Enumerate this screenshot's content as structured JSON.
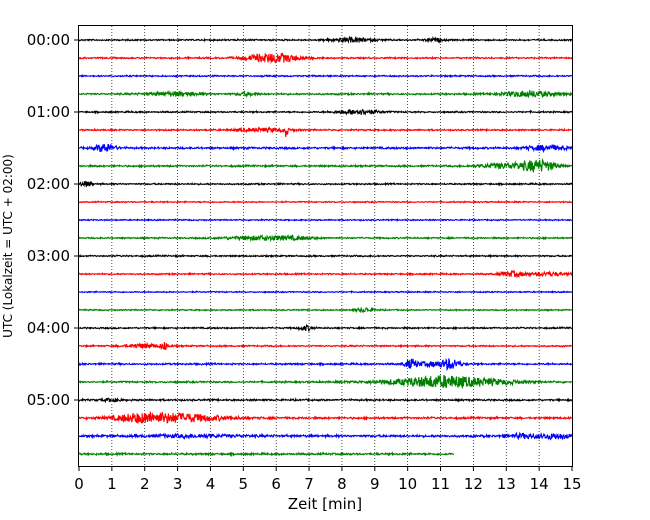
{
  "chart_data": {
    "type": "line",
    "title": "",
    "xlabel": "Zeit  [min]",
    "ylabel": "UTC (Lokalzeit = UTC + 02:00)",
    "xlim": [
      0,
      15
    ],
    "x_ticks": [
      0,
      1,
      2,
      3,
      4,
      5,
      6,
      7,
      8,
      9,
      10,
      11,
      12,
      13,
      14,
      15
    ],
    "grid": "vertical dotted lines at each minute",
    "y_tick_labels": [
      "00:00",
      "01:00",
      "02:00",
      "03:00",
      "04:00",
      "05:00"
    ],
    "trace_minutes": 15,
    "color_cycle": [
      "#000000",
      "#ff0000",
      "#0000ff",
      "#008000"
    ],
    "traces": [
      {
        "start": "00:00",
        "color": "#000000",
        "noise": 0.6,
        "events": [
          {
            "t": 8.3,
            "amp": 2.0,
            "dur": 0.7
          },
          {
            "t": 10.8,
            "amp": 1.5,
            "dur": 0.3
          }
        ]
      },
      {
        "start": "00:15",
        "color": "#ff0000",
        "noise": 0.6,
        "events": [
          {
            "t": 5.9,
            "amp": 4.5,
            "dur": 0.8
          }
        ]
      },
      {
        "start": "00:30",
        "color": "#0000ff",
        "noise": 0.6,
        "events": []
      },
      {
        "start": "00:45",
        "color": "#008000",
        "noise": 0.7,
        "events": [
          {
            "t": 2.9,
            "amp": 2.0,
            "dur": 0.8
          },
          {
            "t": 5.1,
            "amp": 1.5,
            "dur": 0.3
          },
          {
            "t": 13.7,
            "amp": 3.0,
            "dur": 0.8
          }
        ]
      },
      {
        "start": "01:00",
        "color": "#000000",
        "noise": 0.6,
        "events": [
          {
            "t": 8.5,
            "amp": 2.5,
            "dur": 0.6
          }
        ]
      },
      {
        "start": "01:15",
        "color": "#ff0000",
        "noise": 0.6,
        "events": [
          {
            "t": 5.6,
            "amp": 1.5,
            "dur": 0.9
          },
          {
            "t": 6.3,
            "amp": 7.0,
            "dur": 0.05
          }
        ]
      },
      {
        "start": "01:30",
        "color": "#0000ff",
        "noise": 0.8,
        "events": [
          {
            "t": 0.8,
            "amp": 4.0,
            "dur": 0.3
          },
          {
            "t": 14.2,
            "amp": 2.5,
            "dur": 0.6
          }
        ]
      },
      {
        "start": "01:45",
        "color": "#008000",
        "noise": 0.7,
        "events": [
          {
            "t": 13.0,
            "amp": 2.5,
            "dur": 0.8
          },
          {
            "t": 14.0,
            "amp": 5.5,
            "dur": 0.5
          }
        ]
      },
      {
        "start": "02:00",
        "color": "#000000",
        "noise": 0.6,
        "events": [
          {
            "t": 0.2,
            "amp": 2.5,
            "dur": 0.2
          }
        ]
      },
      {
        "start": "02:15",
        "color": "#ff0000",
        "noise": 0.5,
        "events": []
      },
      {
        "start": "02:30",
        "color": "#0000ff",
        "noise": 0.5,
        "events": []
      },
      {
        "start": "02:45",
        "color": "#008000",
        "noise": 0.6,
        "events": [
          {
            "t": 5.5,
            "amp": 2.0,
            "dur": 1.0
          },
          {
            "t": 6.6,
            "amp": 1.2,
            "dur": 0.6
          }
        ]
      },
      {
        "start": "03:00",
        "color": "#000000",
        "noise": 0.6,
        "events": []
      },
      {
        "start": "03:15",
        "color": "#ff0000",
        "noise": 0.6,
        "events": [
          {
            "t": 13.2,
            "amp": 2.5,
            "dur": 0.4
          },
          {
            "t": 14.3,
            "amp": 1.8,
            "dur": 0.5
          }
        ]
      },
      {
        "start": "03:30",
        "color": "#0000ff",
        "noise": 0.5,
        "events": []
      },
      {
        "start": "03:45",
        "color": "#008000",
        "noise": 0.5,
        "events": [
          {
            "t": 8.7,
            "amp": 2.0,
            "dur": 0.3
          }
        ]
      },
      {
        "start": "04:00",
        "color": "#000000",
        "noise": 0.6,
        "events": [
          {
            "t": 6.9,
            "amp": 2.5,
            "dur": 0.2
          }
        ]
      },
      {
        "start": "04:15",
        "color": "#ff0000",
        "noise": 0.6,
        "events": [
          {
            "t": 2.0,
            "amp": 2.0,
            "dur": 0.6
          },
          {
            "t": 2.6,
            "amp": 3.5,
            "dur": 0.1
          }
        ]
      },
      {
        "start": "04:30",
        "color": "#0000ff",
        "noise": 0.7,
        "events": [
          {
            "t": 10.1,
            "amp": 4.5,
            "dur": 0.2
          },
          {
            "t": 11.3,
            "amp": 5.0,
            "dur": 0.3
          },
          {
            "t": 10.7,
            "amp": 2.0,
            "dur": 0.4
          }
        ]
      },
      {
        "start": "04:45",
        "color": "#008000",
        "noise": 0.7,
        "events": [
          {
            "t": 10.3,
            "amp": 2.5,
            "dur": 1.5
          },
          {
            "t": 11.2,
            "amp": 4.0,
            "dur": 1.0
          },
          {
            "t": 12.6,
            "amp": 2.0,
            "dur": 1.0
          }
        ]
      },
      {
        "start": "05:00",
        "color": "#000000",
        "noise": 0.7,
        "events": [
          {
            "t": 1.0,
            "amp": 1.5,
            "dur": 0.3
          }
        ]
      },
      {
        "start": "05:15",
        "color": "#ff0000",
        "noise": 0.8,
        "events": [
          {
            "t": 2.8,
            "amp": 4.5,
            "dur": 1.5
          },
          {
            "t": 1.8,
            "amp": 2.0,
            "dur": 0.6
          }
        ]
      },
      {
        "start": "05:30",
        "color": "#0000ff",
        "noise": 0.9,
        "events": [
          {
            "t": 13.5,
            "amp": 2.0,
            "dur": 0.5
          },
          {
            "t": 14.5,
            "amp": 2.5,
            "dur": 0.5
          },
          {
            "t": 3.5,
            "amp": 1.2,
            "dur": 1.5
          }
        ]
      },
      {
        "start": "05:45",
        "color": "#008000",
        "noise": 0.8,
        "events": [],
        "end_minute": 11.4
      }
    ]
  }
}
